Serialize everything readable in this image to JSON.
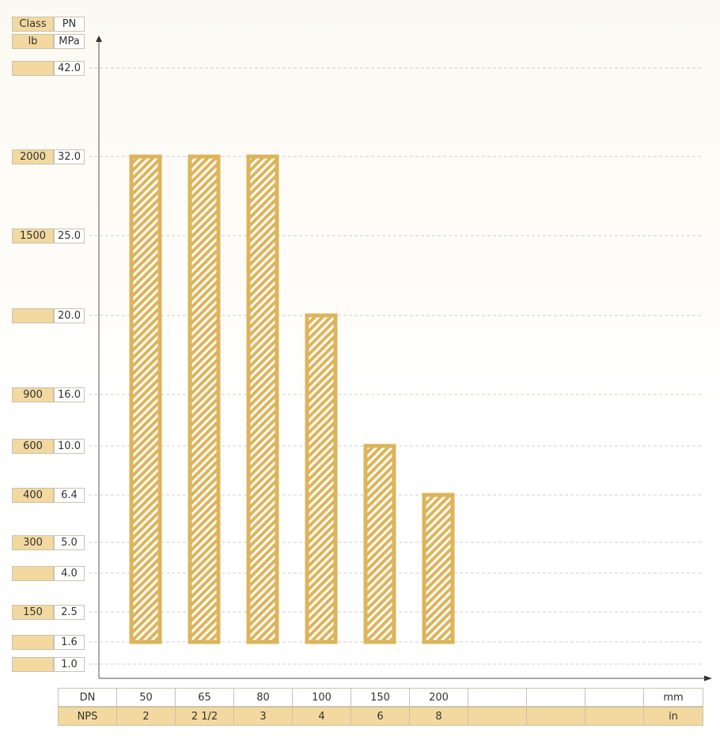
{
  "chart_data": {
    "type": "bar",
    "y_header": {
      "class_label": "Class",
      "unit_label": "lb",
      "pn_label": "PN",
      "pn_unit": "MPa"
    },
    "y_ticks": [
      {
        "pn": "42.0",
        "cls": ""
      },
      {
        "pn": "32.0",
        "cls": "2000"
      },
      {
        "pn": "25.0",
        "cls": "1500"
      },
      {
        "pn": "20.0",
        "cls": ""
      },
      {
        "pn": "16.0",
        "cls": "900"
      },
      {
        "pn": "10.0",
        "cls": "600"
      },
      {
        "pn": "6.4",
        "cls": "400"
      },
      {
        "pn": "5.0",
        "cls": "300"
      },
      {
        "pn": "4.0",
        "cls": ""
      },
      {
        "pn": "2.5",
        "cls": "150"
      },
      {
        "pn": "1.6",
        "cls": ""
      },
      {
        "pn": "1.0",
        "cls": ""
      }
    ],
    "x_row_labels": {
      "dn": "DN",
      "nps": "NPS",
      "dn_unit": "mm",
      "nps_unit": "in"
    },
    "categories": [
      {
        "dn": "50",
        "nps": "2"
      },
      {
        "dn": "65",
        "nps": "2 1/2"
      },
      {
        "dn": "80",
        "nps": "3"
      },
      {
        "dn": "100",
        "nps": "4"
      },
      {
        "dn": "150",
        "nps": "6"
      },
      {
        "dn": "200",
        "nps": "8"
      },
      {
        "dn": "",
        "nps": ""
      },
      {
        "dn": "",
        "nps": ""
      },
      {
        "dn": "",
        "nps": ""
      }
    ],
    "bars": [
      {
        "category": "50",
        "min": "1.6",
        "max": "32.0"
      },
      {
        "category": "65",
        "min": "1.6",
        "max": "32.0"
      },
      {
        "category": "80",
        "min": "1.6",
        "max": "32.0"
      },
      {
        "category": "100",
        "min": "1.6",
        "max": "20.0"
      },
      {
        "category": "150",
        "min": "1.6",
        "max": "10.0"
      },
      {
        "category": "200",
        "min": "1.6",
        "max": "6.4"
      }
    ],
    "grid": true,
    "bar_color": "#ddb45a",
    "stripe_color": "#ffffff",
    "cell_color": "#f3d9a0"
  }
}
